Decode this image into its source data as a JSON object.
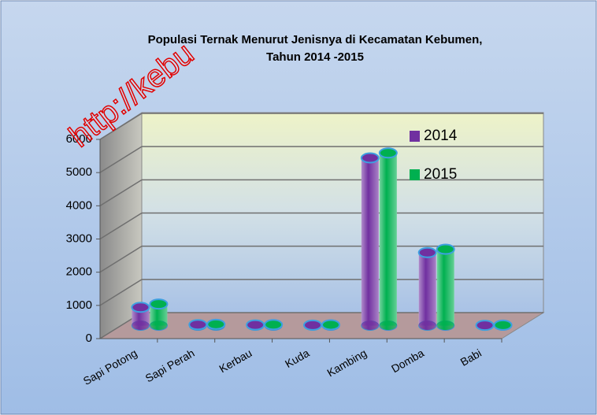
{
  "chart_data": {
    "type": "bar3d",
    "title": "Populasi Ternak Menurut Jenisnya di Kecamatan Kebumen,",
    "subtitle": "Tahun 2014 -2015",
    "watermark": "http://kebu",
    "categories": [
      "Sapi Potong",
      "Sapi Perah",
      "Kerbau",
      "Kuda",
      "Kambing",
      "Domba",
      "Babi"
    ],
    "series": [
      {
        "name": "2014",
        "color": "#7030a0",
        "values": [
          550,
          30,
          20,
          15,
          5050,
          2200,
          10
        ]
      },
      {
        "name": "2015",
        "color": "#00b050",
        "values": [
          650,
          40,
          30,
          25,
          5200,
          2300,
          15
        ]
      }
    ],
    "ylim": [
      0,
      6000
    ],
    "yticks": [
      0,
      1000,
      2000,
      3000,
      4000,
      5000,
      6000
    ],
    "grid": true,
    "legend": "upper right"
  }
}
